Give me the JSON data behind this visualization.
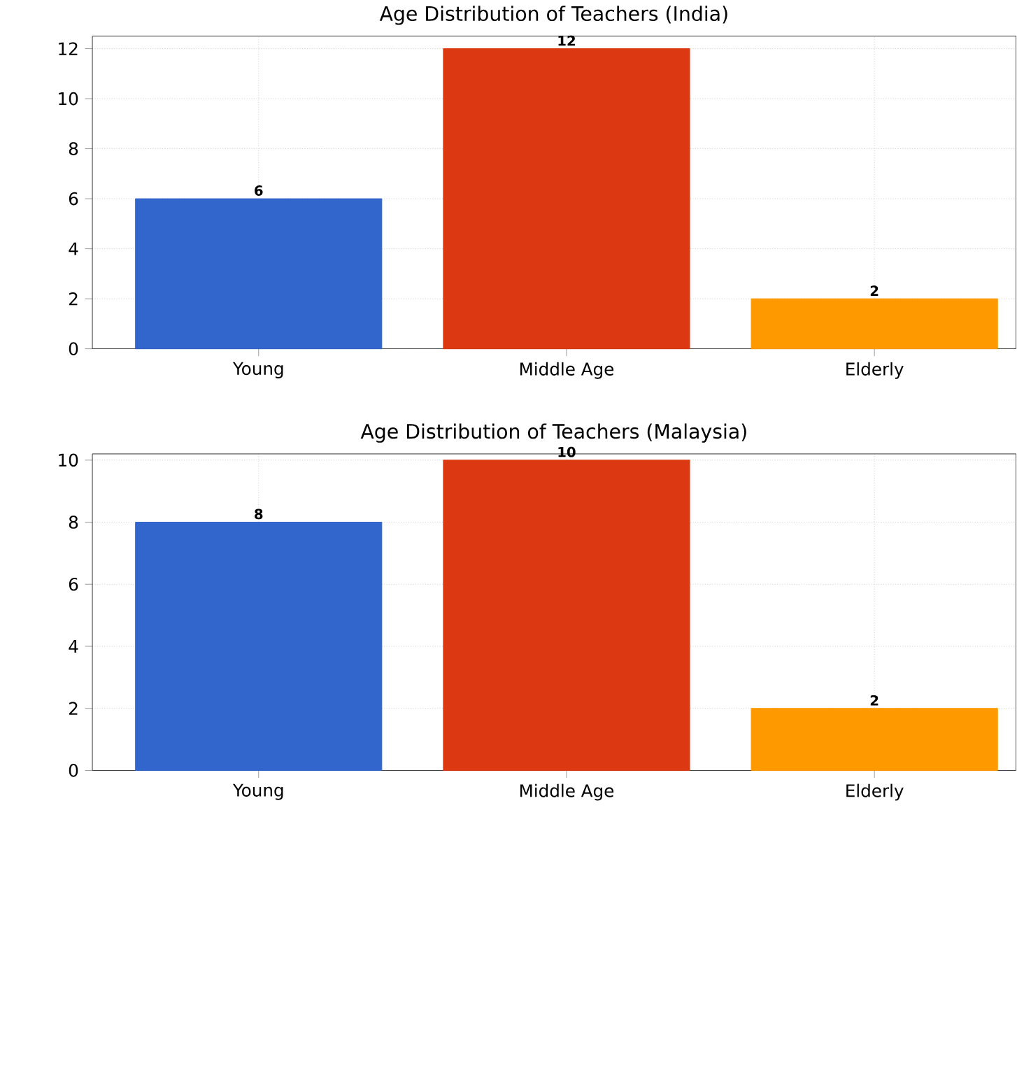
{
  "chart_data": [
    {
      "type": "bar",
      "title": "Age Distribution of Teachers (India)",
      "categories": [
        "Young",
        "Middle Age",
        "Elderly"
      ],
      "values": [
        6,
        12,
        2
      ],
      "colors": [
        "#3366cc",
        "#dc3912",
        "#ff9900"
      ],
      "ylim": [
        0,
        12.5
      ],
      "yticks": [
        0,
        2,
        4,
        6,
        8,
        10,
        12
      ],
      "grid": true,
      "data_labels": true
    },
    {
      "type": "bar",
      "title": "Age Distribution of Teachers (Malaysia)",
      "categories": [
        "Young",
        "Middle Age",
        "Elderly"
      ],
      "values": [
        8,
        10,
        2
      ],
      "colors": [
        "#3366cc",
        "#dc3912",
        "#ff9900"
      ],
      "ylim": [
        0,
        10.2
      ],
      "yticks": [
        0,
        2,
        4,
        6,
        8,
        10
      ],
      "grid": true,
      "data_labels": true
    }
  ]
}
